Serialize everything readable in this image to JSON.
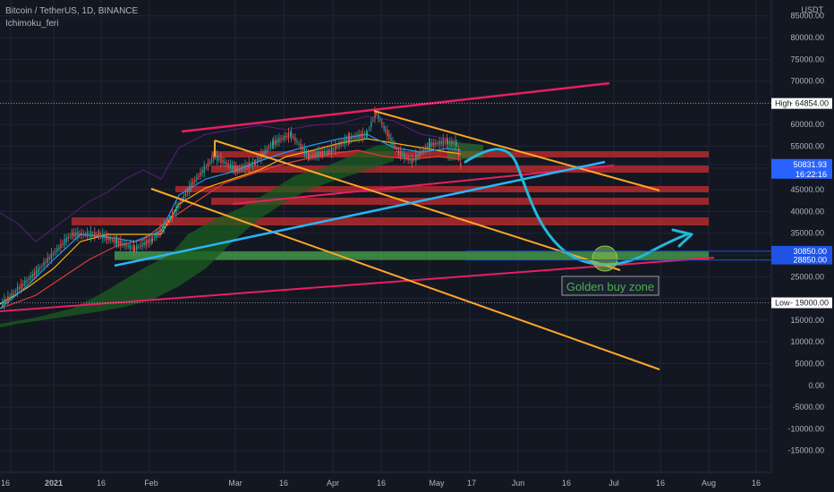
{
  "header": {
    "title": "Bitcoin / TetherUS, 1D, BINANCE",
    "indicator": "Ichimoku_feri"
  },
  "chart_data": {
    "type": "line",
    "currency": "USDT",
    "x_ticks": [
      "16",
      "2021",
      "16",
      "Feb",
      "Mar",
      "16",
      "Apr",
      "16",
      "May",
      "17",
      "Jun",
      "16",
      "Jul",
      "16",
      "Aug",
      "16"
    ],
    "y_ticks": [
      "90000.00",
      "85000.00",
      "80000.00",
      "75000.00",
      "70000.00",
      "60000.00",
      "55000.00",
      "45000.00",
      "40000.00",
      "35000.00",
      "25000.00",
      "15000.00",
      "10000.00",
      "5000.00",
      "0.00",
      "-5000.00",
      "-10000.00",
      "-15000.00"
    ],
    "price_labels": [
      {
        "name": "High",
        "value": "64854.00",
        "color": "#ffffff"
      },
      {
        "name": "",
        "value": "50831.93",
        "sub": "16:22:16",
        "color": "#2962ff"
      },
      {
        "name": "",
        "value": "30850.00",
        "color": "#1e53e5"
      },
      {
        "name": "",
        "value": "28850.00",
        "color": "#1e53e5"
      },
      {
        "name": "Low",
        "value": "19000.00",
        "color": "#ffffff"
      }
    ],
    "annotation": "Golden buy zone",
    "colors": {
      "background": "#131722",
      "up": "#26a69a",
      "down": "#ef5350",
      "trend_pink": "#e91e63",
      "trend_orange": "#ffa726",
      "trend_blue": "#29b6f6",
      "resistance": "#d32f2f",
      "buy_zone": "#4caf50",
      "cyan_path": "#22b8d9"
    }
  }
}
